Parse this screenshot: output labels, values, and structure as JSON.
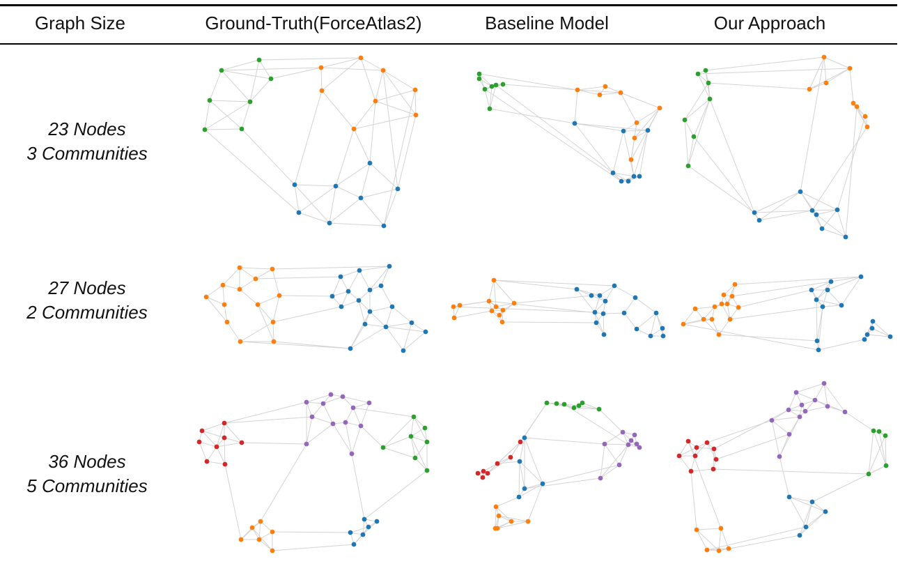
{
  "table": {
    "headers": [
      "Graph Size",
      "Ground-Truth(ForceAtlas2)",
      "Baseline Model",
      "Our Approach"
    ],
    "rows": [
      {
        "nodes_label": "23 Nodes",
        "communities_label": "3 Communities"
      },
      {
        "nodes_label": "27 Nodes",
        "communities_label": "2 Communities"
      },
      {
        "nodes_label": "36 Nodes",
        "communities_label": "5 Communities"
      }
    ]
  },
  "community_colors": {
    "blue": "#1f77b4",
    "orange": "#ff7f0e",
    "green": "#2ca02c",
    "red": "#d62728",
    "purple": "#9467bd"
  },
  "edge_color": "#d3d3d3"
}
